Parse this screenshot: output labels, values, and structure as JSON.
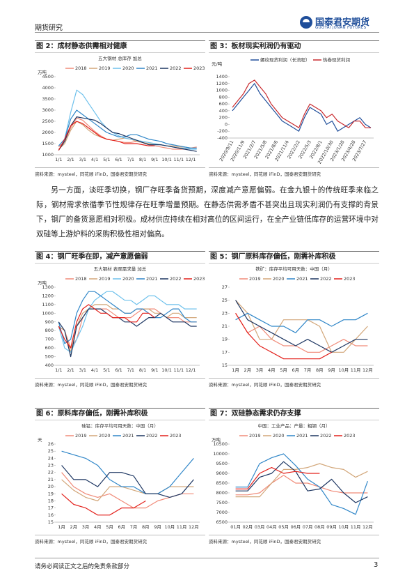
{
  "header": {
    "section": "期货研究",
    "logo_cn": "国泰君安期货",
    "logo_en": "GUOTAI JUNAN FUTURES"
  },
  "figures": [
    {
      "caption": "图 2：成材静态供需相对健康",
      "source": "资料来源：mysteel，同花顺 iFinD，国泰君安期货研究"
    },
    {
      "caption": "图 3：板材现实利润仍有驱动",
      "source": "资料来源：mysteel，同花顺 iFinD，国泰君安期货研究"
    },
    {
      "caption": "图 4：钢厂旺季在即，减产意愿偏弱",
      "source": "资料来源：mysteel，同花顺 iFinD，国泰君安期货研究"
    },
    {
      "caption": "图 5：钢厂原料库存偏低，刚需补库积极",
      "source": "资料来源：mysteel，同花顺 iFinD，国泰君安期货研究"
    },
    {
      "caption": "图 6：原料库存偏低，刚需补库积极",
      "source": "资料来源：mysteel，同花顺 iFinD，国泰君安期货研究"
    },
    {
      "caption": "图 7：双硅静态需求仍存支撑",
      "source": "资料来源：mysteel，同花顺 iFinD，国泰君安期货研究"
    }
  ],
  "body": "另一方面，淡旺季切换，钢厂存旺季备货预期，深度减产意愿偏弱。在金九银十的传统旺季来临之际，钢材需求依循季节性规律存在旺季增量预期。在静态供需矛盾不甚突出且现实利润仍有支撑的背景下，钢厂的备货意愿相对积极。成材供应持续在相对高位的区间运行，在全产业链低库存的运营环境中对双硅等上游炉料的采购积极性相对偏高。",
  "footer": {
    "note": "请务必阅读正文之后的免责条款部分",
    "page": "3"
  },
  "chart_data": [
    {
      "type": "line",
      "title": "五大钢材 总库存 加总",
      "ylabel": "万吨",
      "categories": [
        "1/1",
        null,
        "2/1",
        null,
        "3/1",
        null,
        "4/1",
        null,
        "5/1",
        null,
        "6/1",
        null,
        "7/1",
        null,
        "8/1",
        null,
        "9/1",
        null,
        "10/1",
        null,
        "11/1",
        null,
        "12/1",
        null
      ],
      "ylim": [
        1000,
        4500
      ],
      "yticks": [
        1000,
        1500,
        2000,
        2500,
        3000,
        3500,
        4000,
        4500
      ],
      "series": [
        {
          "name": "2018",
          "color": "#f08a78",
          "values": [
            1350,
            1600,
            2200,
            2650,
            2550,
            2300,
            2050,
            1850,
            1700,
            1650,
            1600,
            1550,
            1550,
            1600,
            1550,
            1450,
            1400,
            1350,
            1300,
            1250,
            1250,
            1250,
            1300,
            1350
          ]
        },
        {
          "name": "2019",
          "color": "#d2a679",
          "values": [
            1250,
            1500,
            2100,
            2500,
            2350,
            2100,
            1900,
            1800,
            1700,
            1650,
            1700,
            1750,
            1700,
            1600,
            1550,
            1500,
            1500,
            1450,
            1400,
            1400,
            1350,
            1350,
            1300,
            1300
          ]
        },
        {
          "name": "2020",
          "color": "#6ec1ec",
          "values": [
            1200,
            1700,
            2900,
            3900,
            3700,
            3300,
            2900,
            2500,
            2200,
            2000,
            1850,
            1750,
            1700,
            1650,
            1600,
            1550,
            1500,
            1450,
            1400,
            1350,
            1300,
            1300,
            1250,
            1250
          ]
        },
        {
          "name": "2021",
          "color": "#2f86c8",
          "values": [
            1400,
            1700,
            2600,
            3000,
            2800,
            2600,
            2400,
            2200,
            2000,
            1900,
            1800,
            1800,
            1900,
            1900,
            1800,
            1700,
            1650,
            1600,
            1500,
            1450,
            1400,
            1350,
            1300,
            1300
          ]
        },
        {
          "name": "2022",
          "color": "#1c3561",
          "values": [
            1200,
            1600,
            2300,
            2700,
            2650,
            2600,
            2550,
            2400,
            2200,
            2000,
            1950,
            1850,
            1750,
            1650,
            1550,
            1450,
            1450,
            1450,
            1400,
            1350,
            1300,
            1250,
            1200,
            1150
          ]
        },
        {
          "name": "2023",
          "color": "#e3201b",
          "values": [
            1200,
            1700,
            2300,
            2500,
            2400,
            2200,
            2000,
            1800,
            1700,
            1650,
            1600,
            1500,
            1500,
            1500,
            1450,
            1400,
            1400,
            null,
            null,
            null,
            null,
            null,
            null,
            null
          ]
        }
      ]
    },
    {
      "type": "line",
      "ylabel": "元/吨",
      "x_label_rotation": -60,
      "categories": [
        "2020/9/11",
        null,
        "2020/11/9",
        null,
        "2021/2/7",
        null,
        "2021/5/8",
        null,
        "2021/8/6",
        null,
        "2021/11/4",
        null,
        "2022/2/2",
        null,
        "2022/5/3",
        null,
        "2022/8/1",
        null,
        "2022/10/30",
        null,
        "2023/1/28",
        null,
        "2023/4/28",
        null,
        "2023/7/27",
        null
      ],
      "ylim": [
        -400,
        1400
      ],
      "yticks": [
        -400,
        -200,
        0,
        200,
        400,
        600,
        800,
        1000,
        1200,
        1400
      ],
      "series": [
        {
          "name": "螺纹现货利润（长流程）",
          "color": "#1f4e9a",
          "values": [
            400,
            600,
            800,
            1000,
            1200,
            900,
            700,
            500,
            300,
            100,
            0,
            -100,
            -200,
            200,
            500,
            400,
            300,
            0,
            100,
            -200,
            -100,
            0,
            100,
            200,
            0,
            -100
          ]
        },
        {
          "name": "热卷现货利润",
          "color": "#c8282c",
          "values": [
            500,
            700,
            900,
            1200,
            1300,
            1100,
            900,
            600,
            400,
            200,
            100,
            0,
            -100,
            300,
            600,
            500,
            400,
            200,
            300,
            100,
            0,
            -100,
            100,
            100,
            -100,
            -100
          ]
        }
      ]
    },
    {
      "type": "line",
      "title": "五大钢材 表观需求量 加总",
      "ylabel": "万吨",
      "categories": [
        "1/1",
        null,
        "2/1",
        null,
        "3/1",
        null,
        "4/1",
        null,
        "5/1",
        null,
        "6/1",
        null,
        "7/1",
        null,
        "8/1",
        null,
        "9/1",
        null,
        "10/1",
        null,
        "11/1",
        null,
        "12/1",
        null
      ],
      "ylim": [
        400,
        1300
      ],
      "yticks": [
        400,
        500,
        600,
        700,
        800,
        900,
        1000,
        1100,
        1200,
        1300
      ],
      "series": [
        {
          "name": "2018",
          "color": "#f08a78",
          "values": [
            850,
            800,
            600,
            700,
            950,
            1050,
            1050,
            1050,
            1050,
            1000,
            950,
            950,
            950,
            1000,
            1050,
            1050,
            1050,
            1000,
            950,
            950,
            950,
            900,
            900,
            900
          ]
        },
        {
          "name": "2019",
          "color": "#d2a679",
          "values": [
            850,
            800,
            550,
            850,
            1000,
            1050,
            1100,
            1100,
            1100,
            1050,
            1050,
            1000,
            1000,
            1050,
            1050,
            1050,
            1000,
            1000,
            950,
            1000,
            1000,
            950,
            950,
            950
          ]
        },
        {
          "name": "2020",
          "color": "#6ec1ec",
          "values": [
            850,
            600,
            550,
            700,
            850,
            1050,
            1150,
            1200,
            1250,
            1250,
            1200,
            1150,
            1150,
            1100,
            1150,
            1200,
            1200,
            1150,
            1100,
            1100,
            1100,
            1050,
            1050,
            1050
          ]
        },
        {
          "name": "2021",
          "color": "#2f86c8",
          "values": [
            900,
            650,
            700,
            1000,
            1150,
            1250,
            1250,
            1200,
            1150,
            1100,
            1050,
            1000,
            1000,
            1050,
            1050,
            1000,
            950,
            950,
            1000,
            1050,
            1050,
            950,
            900,
            900
          ]
        },
        {
          "name": "2022",
          "color": "#1c3561",
          "values": [
            900,
            800,
            500,
            850,
            950,
            1050,
            1050,
            1050,
            1000,
            950,
            950,
            900,
            900,
            850,
            900,
            950,
            950,
            1000,
            950,
            900,
            900,
            900,
            850,
            850
          ]
        },
        {
          "name": "2023",
          "color": "#e3201b",
          "values": [
            850,
            700,
            600,
            900,
            1050,
            1100,
            1050,
            1000,
            1000,
            950,
            950,
            950,
            900,
            900,
            1000,
            1000,
            950,
            null,
            null,
            null,
            null,
            null,
            null,
            null
          ]
        }
      ]
    },
    {
      "type": "line",
      "title": "铁矿：库存平均可用天数：中国（月）",
      "categories": [
        "1月",
        "2月",
        "3月",
        "4月",
        "5月",
        "6月",
        "7月",
        "8月",
        "9月",
        "10月",
        "11月",
        "12月"
      ],
      "ylim": [
        15,
        27
      ],
      "yticks": [
        15,
        17,
        19,
        21,
        23,
        25,
        27
      ],
      "series": [
        {
          "name": "2019",
          "color": "#f08a78",
          "values": [
            23,
            20,
            21,
            19,
            18,
            18,
            17,
            17,
            18,
            19,
            18,
            18
          ]
        },
        {
          "name": "2020",
          "color": "#d2a679",
          "values": [
            25,
            23,
            19,
            19,
            22,
            22,
            22,
            21,
            17,
            17,
            19,
            21
          ]
        },
        {
          "name": "2021",
          "color": "#2f86c8",
          "values": [
            22,
            23,
            22,
            21,
            21,
            20,
            22,
            22,
            21,
            22,
            22,
            23
          ]
        },
        {
          "name": "2022",
          "color": "#1c3561",
          "values": [
            25,
            22,
            21,
            20,
            19,
            18,
            19,
            18,
            17,
            18,
            19,
            19
          ]
        },
        {
          "name": "2023",
          "color": "#e3201b",
          "values": [
            23,
            20,
            18,
            17,
            16,
            16,
            16,
            16,
            17,
            null,
            null,
            null
          ]
        }
      ]
    },
    {
      "type": "line",
      "title": "硅锰：库存平均可用天数：中国（月）",
      "ylabel": "天",
      "categories": [
        "1月",
        "2月",
        "3月",
        "4月",
        "5月",
        "6月",
        "7月",
        "8月",
        "9月",
        "10月",
        "11月",
        "12月"
      ],
      "ylim": [
        15,
        26
      ],
      "yticks": [
        15,
        16,
        17,
        18,
        19,
        20,
        21,
        22,
        23,
        24,
        25,
        26
      ],
      "series": [
        {
          "name": "2019",
          "color": "#f08a78",
          "values": [
            22,
            20,
            19,
            18.5,
            19,
            18,
            17,
            17,
            18,
            18.5,
            19,
            19
          ]
        },
        {
          "name": "2020",
          "color": "#d2a679",
          "values": [
            21,
            19.5,
            18.5,
            18,
            20,
            20,
            19.5,
            19,
            19,
            20,
            20,
            20
          ]
        },
        {
          "name": "2021",
          "color": "#2f86c8",
          "values": [
            25,
            24.5,
            24,
            23,
            21,
            20,
            20,
            19,
            19,
            20,
            22,
            24
          ]
        },
        {
          "name": "2022",
          "color": "#1c3561",
          "values": [
            23,
            21,
            21,
            20,
            22,
            22,
            21.5,
            19,
            19,
            18.5,
            19,
            21
          ]
        },
        {
          "name": "2023",
          "color": "#e3201b",
          "values": [
            19,
            17.5,
            17,
            16,
            16,
            17,
            17,
            18,
            null,
            null,
            null,
            null
          ]
        }
      ]
    },
    {
      "type": "line",
      "title": "中国：工业产品：产量：粗钢（月）",
      "ylabel": "万吨",
      "categories": [
        "01月",
        "02月",
        "03月",
        "04月",
        "05月",
        "06月",
        "07月",
        "08月",
        "09月",
        "10月",
        "11月",
        "12月"
      ],
      "ylim": [
        6500,
        10500
      ],
      "yticks": [
        6500,
        7000,
        7500,
        8000,
        8500,
        9000,
        9500,
        10000,
        10500
      ],
      "series": [
        {
          "name": "2019",
          "color": "#f08a78",
          "values": [
            7900,
            7900,
            8000,
            8500,
            8900,
            8500,
            8500,
            8300,
            8100,
            8000,
            8000,
            8000
          ]
        },
        {
          "name": "2020",
          "color": "#d2a679",
          "values": [
            7800,
            7800,
            7800,
            8500,
            9200,
            9200,
            9300,
            9500,
            9300,
            9200,
            8800,
            9100
          ]
        },
        {
          "name": "2021",
          "color": "#2f86c8",
          "values": [
            8300,
            8300,
            9500,
            9800,
            10000,
            9400,
            8700,
            8300,
            7400,
            7200,
            6900,
            8600
          ]
        },
        {
          "name": "2022",
          "color": "#1c3561",
          "values": [
            8100,
            8100,
            8800,
            9000,
            9600,
            9100,
            8100,
            8200,
            8700,
            8000,
            7500,
            7800
          ]
        },
        {
          "name": "2023",
          "color": "#e3201b",
          "values": [
            8200,
            8200,
            9000,
            9300,
            9000,
            9100,
            9000,
            9000,
            null,
            null,
            null,
            null
          ]
        }
      ]
    }
  ]
}
